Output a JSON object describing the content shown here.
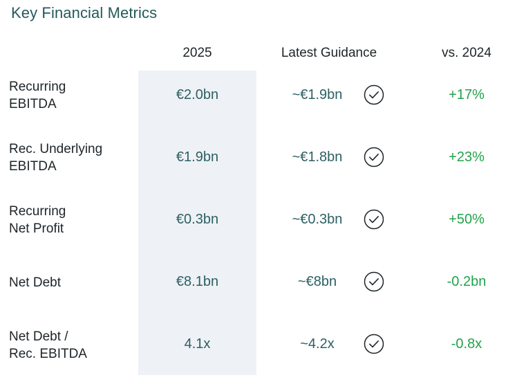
{
  "title": "Key Financial Metrics",
  "headers": {
    "year": "2025",
    "guidance": "Latest Guidance",
    "vs": "vs. 2024"
  },
  "rows": [
    {
      "metric_line1": "Recurring",
      "metric_line2": "EBITDA",
      "value_2025": "€2.0bn",
      "guidance": "~€1.9bn",
      "guidance_met": true,
      "vs_2024": "+17%"
    },
    {
      "metric_line1": "Rec. Underlying",
      "metric_line2": "EBITDA",
      "value_2025": "€1.9bn",
      "guidance": "~€1.8bn",
      "guidance_met": true,
      "vs_2024": "+23%"
    },
    {
      "metric_line1": "Recurring",
      "metric_line2": "Net Profit",
      "value_2025": "€0.3bn",
      "guidance": "~€0.3bn",
      "guidance_met": true,
      "vs_2024": "+50%"
    },
    {
      "metric_line1": "Net Debt",
      "metric_line2": "",
      "value_2025": "€8.1bn",
      "guidance": "~€8bn",
      "guidance_met": true,
      "vs_2024": "-0.2bn"
    },
    {
      "metric_line1": "Net Debt /",
      "metric_line2": "Rec. EBITDA",
      "value_2025": "4.1x",
      "guidance": "~4.2x",
      "guidance_met": true,
      "vs_2024": "-0.8x"
    }
  ],
  "colors": {
    "title": "#245a5c",
    "value": "#2c5f63",
    "positive": "#1fa34a",
    "highlight_column": "#eef1f5"
  },
  "icons": {
    "guidance_met": "check-circle-icon"
  }
}
